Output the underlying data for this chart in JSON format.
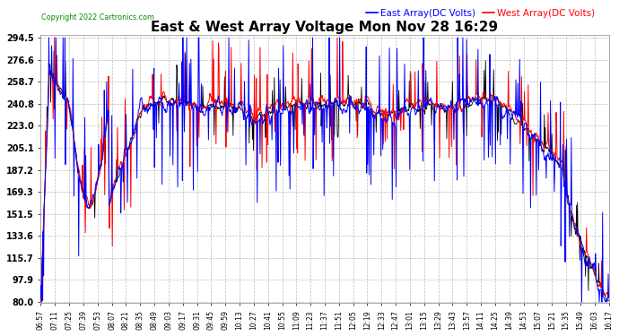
{
  "title": "East & West Array Voltage Mon Nov 28 16:29",
  "copyright": "Copyright 2022 Cartronics.com",
  "legend_east": "East Array(DC Volts)",
  "legend_west": "West Array(DC Volts)",
  "east_color": "#0000ff",
  "west_color": "#ff0000",
  "black_line_color": "#000000",
  "background_color": "#ffffff",
  "plot_bg_color": "#ffffff",
  "grid_color": "#aaaaaa",
  "title_color": "#000000",
  "tick_color": "#000000",
  "copyright_color": "#008800",
  "legend_east_color": "#0000ff",
  "legend_west_color": "#ff0000",
  "yticks": [
    80.0,
    97.9,
    115.7,
    133.6,
    151.5,
    169.3,
    187.2,
    205.1,
    223.0,
    240.8,
    258.7,
    276.6,
    294.5
  ],
  "ylim": [
    80.0,
    294.5
  ],
  "x_labels": [
    "06:57",
    "07:11",
    "07:25",
    "07:39",
    "07:53",
    "08:07",
    "08:21",
    "08:35",
    "08:49",
    "09:03",
    "09:17",
    "09:31",
    "09:45",
    "09:59",
    "10:13",
    "10:27",
    "10:41",
    "10:55",
    "11:09",
    "11:23",
    "11:37",
    "11:51",
    "12:05",
    "12:19",
    "12:33",
    "12:47",
    "13:01",
    "13:15",
    "13:29",
    "13:43",
    "13:57",
    "14:11",
    "14:25",
    "14:39",
    "14:53",
    "15:07",
    "15:21",
    "15:35",
    "15:49",
    "16:03",
    "16:17"
  ],
  "seed_east": 42,
  "seed_west": 77,
  "seed_black": 13,
  "n_points": 1200
}
